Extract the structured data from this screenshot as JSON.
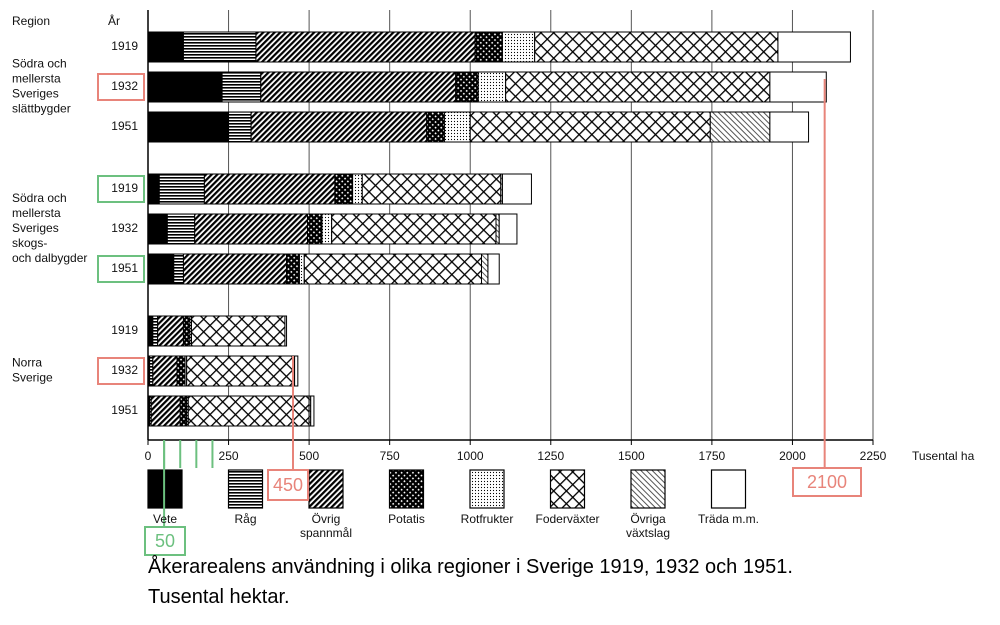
{
  "chart_data": {
    "type": "bar",
    "orientation": "horizontal",
    "stacked": true,
    "header_region": "Region",
    "header_year": "År",
    "x_label": "Tusental ha",
    "caption": [
      "Åkerarealens användning i olika regioner i Sverige 1919, 1932 och 1951.",
      "Tusental hektar."
    ],
    "categories": [
      "1919",
      "1932",
      "1951",
      "1919",
      "1932",
      "1951",
      "1919",
      "1932",
      "1951"
    ],
    "region_labels": [
      null,
      [
        "Södra och",
        "mellersta",
        "Sveriges",
        "slättbygder"
      ],
      null,
      null,
      [
        "Södra och",
        "mellersta",
        "Sveriges",
        "skogs-",
        "och dalbygder"
      ],
      null,
      null,
      [
        "Norra",
        "Sverige"
      ],
      null
    ],
    "highlights": [
      null,
      "#e8847a",
      null,
      "#6cc07f",
      null,
      "#6cc07f",
      null,
      "#e8847a",
      null
    ],
    "xlim": [
      0,
      2250
    ],
    "xticks": [
      0,
      250,
      500,
      750,
      1000,
      1250,
      1500,
      1750,
      2000,
      2250
    ],
    "grid": true,
    "series": [
      {
        "name": "Vete",
        "color": "#000000",
        "pattern": "solid",
        "values": [
          110,
          230,
          250,
          35,
          60,
          80,
          15,
          5,
          5
        ]
      },
      {
        "name": "Råg",
        "color": "#000000",
        "pattern": "hlines",
        "values": [
          225,
          120,
          70,
          140,
          85,
          30,
          15,
          10,
          5
        ]
      },
      {
        "name": "Övrig spannmål",
        "color": "#000000",
        "pattern": "diag",
        "values": [
          680,
          605,
          545,
          405,
          350,
          320,
          80,
          75,
          90
        ]
      },
      {
        "name": "Potatis",
        "color": "#000000",
        "pattern": "densecross",
        "values": [
          85,
          70,
          55,
          55,
          45,
          40,
          20,
          25,
          20
        ]
      },
      {
        "name": "Rotfrukter",
        "color": "#000000",
        "pattern": "dots",
        "values": [
          100,
          85,
          80,
          30,
          30,
          15,
          5,
          5,
          5
        ]
      },
      {
        "name": "Foderväxter",
        "color": "#000000",
        "pattern": "cross",
        "values": [
          755,
          820,
          745,
          430,
          510,
          550,
          290,
          330,
          375
        ]
      },
      {
        "name": "Övriga växtslag",
        "color": "#000000",
        "pattern": "backdiag",
        "values": [
          0,
          0,
          185,
          5,
          10,
          20,
          0,
          5,
          5
        ]
      },
      {
        "name": "Träda m.m.",
        "color": "#000000",
        "pattern": "empty",
        "values": [
          225,
          175,
          120,
          90,
          55,
          35,
          5,
          10,
          10
        ]
      }
    ],
    "annotations": [
      {
        "value": 450,
        "color": "#e8847a"
      },
      {
        "value": 2100,
        "color": "#e8847a"
      },
      {
        "value": 50,
        "color": "#6cc07f",
        "ticks": [
          50,
          100,
          150,
          200
        ]
      }
    ]
  }
}
